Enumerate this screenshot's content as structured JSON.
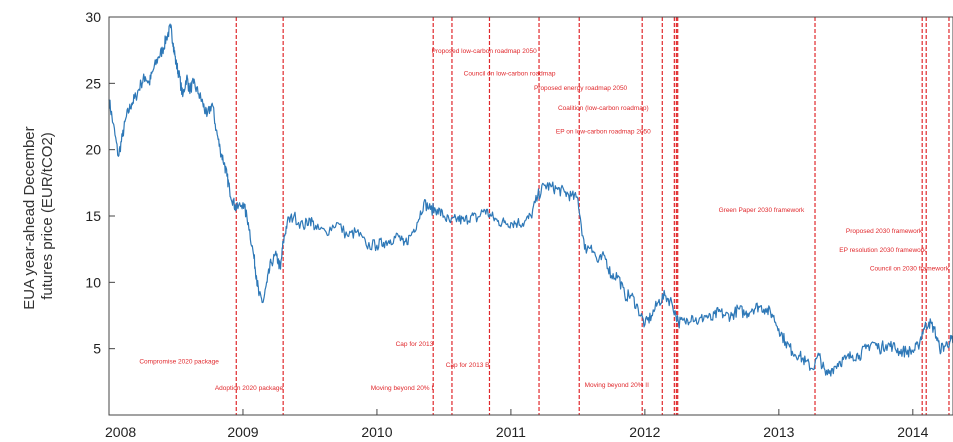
{
  "chart_data": {
    "type": "line",
    "ylabel_lines": [
      "EUA year-ahead December",
      "futures price (EUR/tCO2)"
    ],
    "x_range": [
      2008.0,
      2014.3
    ],
    "y_range": [
      0,
      30
    ],
    "x_ticks": [
      {
        "value": 2008,
        "label": "2008"
      },
      {
        "value": 2009,
        "label": "2009"
      },
      {
        "value": 2010,
        "label": "2010"
      },
      {
        "value": 2011,
        "label": "2011"
      },
      {
        "value": 2012,
        "label": "2012"
      },
      {
        "value": 2013,
        "label": "2013"
      },
      {
        "value": 2014,
        "label": "2014"
      }
    ],
    "y_ticks": [
      {
        "value": 5,
        "label": "5"
      },
      {
        "value": 10,
        "label": "10"
      },
      {
        "value": 15,
        "label": "15"
      },
      {
        "value": 20,
        "label": "20"
      },
      {
        "value": 25,
        "label": "25"
      },
      {
        "value": 30,
        "label": "30"
      }
    ],
    "grid": false,
    "colors": {
      "line": "#2e78b7",
      "events": "#e0282c",
      "axis": "#444444"
    },
    "series": [
      {
        "x": [
          2008.0,
          2008.03,
          2008.07,
          2008.1,
          2008.13,
          2008.17,
          2008.2,
          2008.24,
          2008.27,
          2008.3,
          2008.33,
          2008.37,
          2008.4,
          2008.43,
          2008.46,
          2008.48,
          2008.5,
          2008.52,
          2008.55,
          2008.58,
          2008.6,
          2008.63,
          2008.67,
          2008.7,
          2008.73,
          2008.77,
          2008.8,
          2008.83,
          2008.86,
          2008.88,
          2008.9,
          2008.93,
          2008.95,
          2009.0,
          2009.04,
          2009.08,
          2009.1,
          2009.12,
          2009.15,
          2009.18,
          2009.21,
          2009.25,
          2009.28,
          2009.3,
          2009.33,
          2009.38,
          2009.45,
          2009.5,
          2009.55,
          2009.62,
          2009.7,
          2009.78,
          2009.85,
          2009.92,
          2010.0,
          2010.05,
          2010.1,
          2010.16,
          2010.2,
          2010.25,
          2010.3,
          2010.35,
          2010.4,
          2010.45,
          2010.5,
          2010.55,
          2010.6,
          2010.65,
          2010.7,
          2010.75,
          2010.8,
          2010.85,
          2010.9,
          2010.95,
          2011.0,
          2011.05,
          2011.1,
          2011.15,
          2011.2,
          2011.25,
          2011.3,
          2011.35,
          2011.4,
          2011.45,
          2011.5,
          2011.55,
          2011.6,
          2011.65,
          2011.7,
          2011.75,
          2011.8,
          2011.85,
          2011.9,
          2011.95,
          2012.0,
          2012.05,
          2012.1,
          2012.15,
          2012.2,
          2012.25,
          2012.3,
          2012.35,
          2012.4,
          2012.45,
          2012.5,
          2012.55,
          2012.6,
          2012.65,
          2012.7,
          2012.75,
          2012.8,
          2012.85,
          2012.9,
          2012.95,
          2013.0,
          2013.05,
          2013.1,
          2013.15,
          2013.2,
          2013.25,
          2013.3,
          2013.35,
          2013.4,
          2013.45,
          2013.5,
          2013.55,
          2013.6,
          2013.65,
          2013.7,
          2013.75,
          2013.8,
          2013.85,
          2013.9,
          2013.95,
          2014.0,
          2014.04,
          2014.08,
          2014.12,
          2014.16,
          2014.2,
          2014.24,
          2014.28,
          2014.3
        ],
        "values": [
          23.8,
          22.0,
          19.5,
          21.0,
          22.5,
          23.5,
          24.0,
          25.0,
          25.5,
          25.0,
          26.0,
          27.0,
          27.5,
          28.5,
          29.2,
          28.0,
          26.5,
          25.8,
          24.0,
          25.5,
          24.5,
          25.0,
          24.2,
          23.5,
          22.5,
          23.5,
          21.5,
          20.0,
          19.0,
          18.0,
          17.0,
          16.0,
          15.5,
          16.0,
          14.5,
          12.0,
          10.5,
          9.0,
          8.5,
          10.0,
          11.5,
          12.0,
          11.0,
          13.0,
          14.5,
          15.0,
          14.2,
          14.8,
          14.0,
          13.8,
          14.5,
          13.5,
          13.8,
          12.8,
          12.8,
          13.0,
          13.2,
          13.5,
          12.8,
          13.5,
          14.5,
          16.0,
          15.5,
          15.5,
          15.0,
          14.5,
          14.8,
          14.6,
          15.0,
          14.8,
          15.5,
          15.0,
          14.6,
          14.5,
          14.5,
          14.5,
          14.5,
          15.0,
          16.5,
          17.3,
          17.2,
          17.0,
          16.8,
          16.5,
          16.3,
          12.5,
          12.8,
          11.5,
          12.0,
          10.5,
          10.5,
          9.0,
          9.0,
          8.0,
          6.8,
          7.5,
          8.5,
          9.0,
          8.5,
          7.0,
          7.0,
          7.5,
          7.0,
          7.5,
          7.2,
          7.8,
          7.5,
          7.5,
          8.0,
          7.6,
          8.0,
          8.2,
          8.0,
          7.6,
          6.5,
          5.5,
          4.8,
          4.5,
          4.0,
          3.5,
          4.5,
          3.0,
          3.5,
          4.0,
          4.2,
          4.5,
          4.5,
          5.0,
          5.5,
          5.0,
          5.3,
          5.2,
          4.8,
          4.8,
          4.8,
          5.2,
          6.5,
          7.0,
          6.5,
          5.0,
          5.2,
          5.6,
          5.6
        ]
      }
    ],
    "events": [
      {
        "x": 2008.95
      },
      {
        "x": 2009.3
      },
      {
        "x": 2010.42
      },
      {
        "x": 2010.56
      },
      {
        "x": 2010.84
      },
      {
        "x": 2011.21
      },
      {
        "x": 2011.51
      },
      {
        "x": 2011.98
      },
      {
        "x": 2012.13
      },
      {
        "x": 2012.22
      },
      {
        "x": 2012.235
      },
      {
        "x": 2012.245
      },
      {
        "x": 2013.27
      },
      {
        "x": 2014.07
      },
      {
        "x": 2014.1
      },
      {
        "x": 2014.27
      }
    ],
    "annotations": [
      {
        "text": "Compromise 2020 package",
        "x": 2008.82,
        "y": 3.9,
        "anchor": "end"
      },
      {
        "text": "Adoption 2020 package",
        "x": 2009.3,
        "y": 1.9,
        "anchor": "end"
      },
      {
        "text": "Proposed low-carbon roadmap 2050",
        "x": 2010.8,
        "y": 27.3,
        "anchor": "middle"
      },
      {
        "text": "Council on low-carbon roadmap",
        "x": 2010.99,
        "y": 25.6,
        "anchor": "middle"
      },
      {
        "text": "Proposed energy roadmap 2050",
        "x": 2011.52,
        "y": 24.5,
        "anchor": "middle"
      },
      {
        "text": "Coalition (low-carbon roadmap)",
        "x": 2011.69,
        "y": 23.0,
        "anchor": "middle"
      },
      {
        "text": "EP on low-carbon roadmap 2050",
        "x": 2011.69,
        "y": 21.2,
        "anchor": "middle"
      },
      {
        "text": "Cap for 2013",
        "x": 2010.42,
        "y": 5.2,
        "anchor": "end"
      },
      {
        "text": "Cap for 2013 B",
        "x": 2010.84,
        "y": 3.6,
        "anchor": "end"
      },
      {
        "text": "Moving beyond 20% I",
        "x": 2010.42,
        "y": 1.9,
        "anchor": "end"
      },
      {
        "text": "Moving beyond 20% II",
        "x": 2011.79,
        "y": 2.1,
        "anchor": "middle"
      },
      {
        "text": "Green Paper 2030 framework",
        "x": 2012.87,
        "y": 15.3,
        "anchor": "middle"
      },
      {
        "text": "Proposed 2030 framework",
        "x": 2014.07,
        "y": 13.7,
        "anchor": "end"
      },
      {
        "text": "EP resolution 2030 framework",
        "x": 2014.1,
        "y": 12.3,
        "anchor": "end"
      },
      {
        "text": "Council on 2030 framework",
        "x": 2014.27,
        "y": 10.9,
        "anchor": "end"
      }
    ]
  }
}
